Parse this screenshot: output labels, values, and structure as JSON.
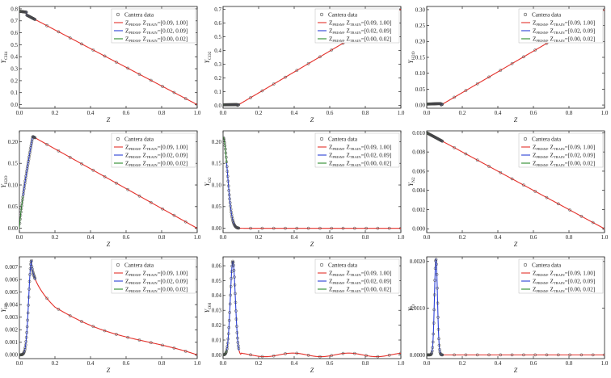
{
  "figure": {
    "legend_entries": [
      {
        "label": "Cantera data",
        "kind": "marker",
        "color": "#444444"
      },
      {
        "label_main": "Z",
        "label_sub1": "PRISM",
        "label_mid": ", Z",
        "label_sub2": "TRAIN",
        "label_end": "=[0.09, 1.00]",
        "kind": "line",
        "color": "#e4312b"
      },
      {
        "label_main": "Z",
        "label_sub1": "PRISM",
        "label_mid": ", Z",
        "label_sub2": "TRAIN",
        "label_end": "=[0.02, 0.09]",
        "kind": "line",
        "color": "#2b3fd6"
      },
      {
        "label_main": "Z",
        "label_sub1": "PRISM",
        "label_mid": ", Z",
        "label_sub2": "TRAIN",
        "label_end": "=[0.00, 0.02]",
        "kind": "line",
        "color": "#2a8a2a"
      }
    ],
    "colors": {
      "red": "#e4312b",
      "blue": "#2b3fd6",
      "green": "#2a8a2a",
      "marker": "#444444"
    }
  },
  "chart_data": [
    {
      "type": "line",
      "ylabel": "Y_CH4",
      "ylabel_main": "Y",
      "ylabel_sub": "CH4",
      "xlabel": "Z",
      "xlim": [
        0,
        1
      ],
      "ylim": [
        -0.03,
        0.82
      ],
      "xticks": [
        "0.0",
        "0.2",
        "0.4",
        "0.6",
        "0.8",
        "1.0"
      ],
      "yticks": [
        "0.0",
        "0.1",
        "0.2",
        "0.3",
        "0.4",
        "0.5",
        "0.6",
        "0.7",
        "0.8"
      ],
      "ytick_values": [
        0,
        0.1,
        0.2,
        0.3,
        0.4,
        0.5,
        0.6,
        0.7,
        0.8
      ],
      "curve": "ch4"
    },
    {
      "type": "line",
      "ylabel": "Y_CO2",
      "ylabel_main": "Y",
      "ylabel_sub": "CO2",
      "xlabel": "Z",
      "xlim": [
        0,
        1
      ],
      "ylim": [
        -0.02,
        0.72
      ],
      "xticks": [
        "0.0",
        "0.2",
        "0.4",
        "0.6",
        "0.8",
        "1.0"
      ],
      "yticks": [
        "0.0",
        "0.1",
        "0.2",
        "0.3",
        "0.4",
        "0.5",
        "0.6",
        "0.7"
      ],
      "ytick_values": [
        0,
        0.1,
        0.2,
        0.3,
        0.4,
        0.5,
        0.6,
        0.7
      ],
      "curve": "co2"
    },
    {
      "type": "line",
      "ylabel": "Y_H2O",
      "ylabel_main": "Y",
      "ylabel_sub": "H2O",
      "xlabel": "Z",
      "xlim": [
        0,
        1
      ],
      "ylim": [
        -0.01,
        0.31
      ],
      "xticks": [
        "0.0",
        "0.2",
        "0.4",
        "0.6",
        "0.8",
        "1.0"
      ],
      "yticks": [
        "0.00",
        "0.05",
        "0.10",
        "0.15",
        "0.20",
        "0.25",
        "0.30"
      ],
      "ytick_values": [
        0,
        0.05,
        0.1,
        0.15,
        0.2,
        0.25,
        0.3
      ],
      "curve": "h2o"
    },
    {
      "type": "line",
      "ylabel": "Y_H2O",
      "ylabel_main": "Y",
      "ylabel_sub": "H2O",
      "xlabel": "Z",
      "xlim": [
        0,
        1
      ],
      "ylim": [
        -0.01,
        0.225
      ],
      "xticks": [
        "0.0",
        "0.2",
        "0.4",
        "0.6",
        "0.8",
        "1.0"
      ],
      "yticks": [
        "0.00",
        "0.05",
        "0.10",
        "0.15",
        "0.20"
      ],
      "ytick_values": [
        0,
        0.05,
        0.1,
        0.15,
        0.2
      ],
      "curve": "h2o_peak"
    },
    {
      "type": "line",
      "ylabel": "Y_O2",
      "ylabel_main": "Y",
      "ylabel_sub": "O2",
      "xlabel": "Z",
      "xlim": [
        0,
        1
      ],
      "ylim": [
        -0.01,
        0.225
      ],
      "xticks": [
        "0.0",
        "0.2",
        "0.4",
        "0.6",
        "0.8",
        "1.0"
      ],
      "yticks": [
        "0.00",
        "0.05",
        "0.10",
        "0.15",
        "0.20"
      ],
      "ytick_values": [
        0,
        0.05,
        0.1,
        0.15,
        0.2
      ],
      "curve": "o2"
    },
    {
      "type": "line",
      "ylabel": "Y_N2",
      "ylabel_main": "Y",
      "ylabel_sub": "N2",
      "xlabel": "Z",
      "xlim": [
        0,
        1
      ],
      "ylim": [
        -0.0004,
        0.0102
      ],
      "xticks": [
        "0.0",
        "0.2",
        "0.4",
        "0.6",
        "0.8",
        "1.0"
      ],
      "yticks": [
        "0.000",
        "0.002",
        "0.004",
        "0.006",
        "0.008",
        "0.010"
      ],
      "ytick_values": [
        0,
        0.002,
        0.004,
        0.006,
        0.008,
        0.01
      ],
      "curve": "n2"
    },
    {
      "type": "line",
      "ylabel": "Y_H2",
      "ylabel_main": "Y",
      "ylabel_sub": "H2",
      "xlabel": "Z",
      "xlim": [
        0,
        1
      ],
      "ylim": [
        -0.0003,
        0.0078
      ],
      "xticks": [
        "0.0",
        "0.2",
        "0.4",
        "0.6",
        "0.8",
        "1.0"
      ],
      "yticks": [
        "0.000",
        "0.001",
        "0.002",
        "0.003",
        "0.004",
        "0.005",
        "0.006",
        "0.007"
      ],
      "ytick_values": [
        0,
        0.001,
        0.002,
        0.003,
        0.004,
        0.005,
        0.006,
        0.007
      ],
      "curve": "h2"
    },
    {
      "type": "line",
      "ylabel": "Y_OH",
      "ylabel_main": "Y",
      "ylabel_sub": "OH",
      "xlabel": "Z",
      "xlim": [
        0,
        1
      ],
      "ylim": [
        -0.0025,
        0.066
      ],
      "xticks": [
        "0.0",
        "0.2",
        "0.4",
        "0.6",
        "0.8",
        "1.0"
      ],
      "yticks": [
        "0.00",
        "0.01",
        "0.02",
        "0.03",
        "0.04",
        "0.05",
        "0.06"
      ],
      "ytick_values": [
        0,
        0.01,
        0.02,
        0.03,
        0.04,
        0.05,
        0.06
      ],
      "curve": "oh"
    },
    {
      "type": "line",
      "ylabel": "Y_O",
      "ylabel_main": "Y",
      "ylabel_sub": "O",
      "xlabel": "Z",
      "xlim": [
        0,
        1
      ],
      "ylim": [
        -8e-05,
        0.0021
      ],
      "xticks": [
        "0.0",
        "0.2",
        "0.4",
        "0.6",
        "0.8",
        "1.0"
      ],
      "yticks": [
        "0.0000",
        "0.0010",
        "0.0020"
      ],
      "ytick_values": [
        0,
        0.001,
        0.002
      ],
      "curve": "o"
    }
  ]
}
